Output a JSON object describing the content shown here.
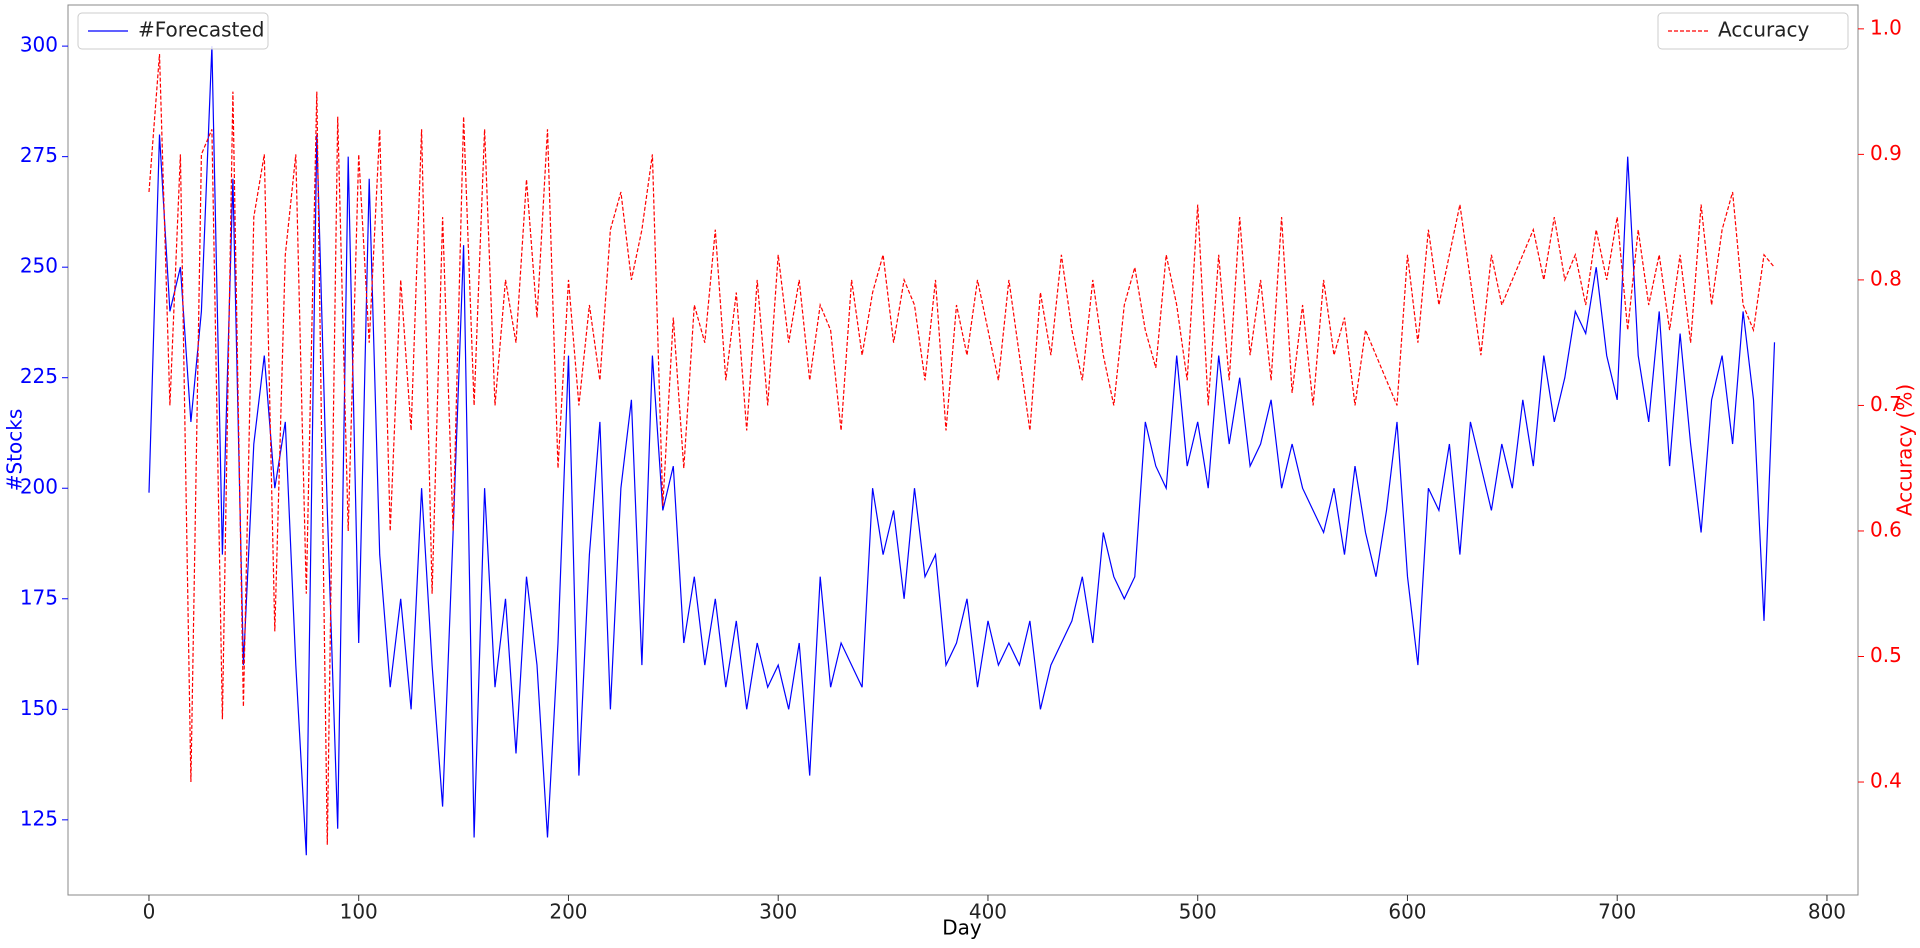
{
  "chart_data": {
    "type": "line",
    "xlabel": "Day",
    "ylabel": "#Stocks",
    "y2label": "Accuracy (%)",
    "x": [
      0,
      5,
      10,
      15,
      20,
      25,
      30,
      35,
      40,
      45,
      50,
      55,
      60,
      65,
      70,
      75,
      80,
      85,
      90,
      95,
      100,
      105,
      110,
      115,
      120,
      125,
      130,
      135,
      140,
      145,
      150,
      155,
      160,
      165,
      170,
      175,
      180,
      185,
      190,
      195,
      200,
      205,
      210,
      215,
      220,
      225,
      230,
      235,
      240,
      245,
      250,
      255,
      260,
      265,
      270,
      275,
      280,
      285,
      290,
      295,
      300,
      305,
      310,
      315,
      320,
      325,
      330,
      335,
      340,
      345,
      350,
      355,
      360,
      365,
      370,
      375,
      380,
      385,
      390,
      395,
      400,
      405,
      410,
      415,
      420,
      425,
      430,
      435,
      440,
      445,
      450,
      455,
      460,
      465,
      470,
      475,
      480,
      485,
      490,
      495,
      500,
      505,
      510,
      515,
      520,
      525,
      530,
      535,
      540,
      545,
      550,
      555,
      560,
      565,
      570,
      575,
      580,
      585,
      590,
      595,
      600,
      605,
      610,
      615,
      620,
      625,
      630,
      635,
      640,
      645,
      650,
      655,
      660,
      665,
      670,
      675,
      680,
      685,
      690,
      695,
      700,
      705,
      710,
      715,
      720,
      725,
      730,
      735,
      740,
      745,
      750,
      755,
      760,
      765,
      770,
      775
    ],
    "series": [
      {
        "name": "#Forecasted",
        "color": "#0000ff",
        "dash": "solid",
        "axis": "y",
        "values": [
          199,
          280,
          240,
          250,
          215,
          240,
          300,
          185,
          270,
          160,
          210,
          230,
          200,
          215,
          160,
          117,
          280,
          195,
          123,
          275,
          165,
          270,
          185,
          155,
          175,
          150,
          200,
          160,
          128,
          190,
          255,
          121,
          200,
          155,
          175,
          140,
          180,
          160,
          121,
          165,
          230,
          135,
          185,
          215,
          150,
          200,
          220,
          160,
          230,
          195,
          205,
          165,
          180,
          160,
          175,
          155,
          170,
          150,
          165,
          155,
          160,
          150,
          165,
          135,
          180,
          155,
          165,
          160,
          155,
          200,
          185,
          195,
          175,
          200,
          180,
          185,
          160,
          165,
          175,
          155,
          170,
          160,
          165,
          160,
          170,
          150,
          160,
          165,
          170,
          180,
          165,
          190,
          180,
          175,
          180,
          215,
          205,
          200,
          230,
          205,
          215,
          200,
          230,
          210,
          225,
          205,
          210,
          220,
          200,
          210,
          200,
          195,
          190,
          200,
          185,
          205,
          190,
          180,
          195,
          215,
          180,
          160,
          200,
          195,
          210,
          185,
          215,
          205,
          195,
          210,
          200,
          220,
          205,
          230,
          215,
          225,
          240,
          235,
          250,
          230,
          220,
          275,
          230,
          215,
          240,
          205,
          235,
          210,
          190,
          220,
          230,
          210,
          240,
          220,
          170,
          233
        ]
      },
      {
        "name": "Accuracy",
        "color": "#ff0000",
        "dash": "dashed",
        "axis": "y2",
        "values": [
          0.87,
          0.98,
          0.7,
          0.9,
          0.4,
          0.9,
          0.92,
          0.45,
          0.95,
          0.46,
          0.85,
          0.9,
          0.52,
          0.82,
          0.9,
          0.55,
          0.95,
          0.35,
          0.93,
          0.6,
          0.9,
          0.75,
          0.92,
          0.6,
          0.8,
          0.68,
          0.92,
          0.55,
          0.85,
          0.6,
          0.93,
          0.7,
          0.92,
          0.7,
          0.8,
          0.75,
          0.88,
          0.77,
          0.92,
          0.65,
          0.8,
          0.7,
          0.78,
          0.72,
          0.84,
          0.87,
          0.8,
          0.84,
          0.9,
          0.62,
          0.77,
          0.65,
          0.78,
          0.75,
          0.84,
          0.72,
          0.79,
          0.68,
          0.8,
          0.7,
          0.82,
          0.75,
          0.8,
          0.72,
          0.78,
          0.76,
          0.68,
          0.8,
          0.74,
          0.79,
          0.82,
          0.75,
          0.8,
          0.78,
          0.72,
          0.8,
          0.68,
          0.78,
          0.74,
          0.8,
          0.76,
          0.72,
          0.8,
          0.74,
          0.68,
          0.79,
          0.74,
          0.82,
          0.76,
          0.72,
          0.8,
          0.74,
          0.7,
          0.78,
          0.81,
          0.76,
          0.73,
          0.82,
          0.78,
          0.72,
          0.86,
          0.7,
          0.82,
          0.72,
          0.85,
          0.74,
          0.8,
          0.72,
          0.85,
          0.71,
          0.78,
          0.7,
          0.8,
          0.74,
          0.77,
          0.7,
          0.76,
          0.74,
          0.72,
          0.7,
          0.82,
          0.75,
          0.84,
          0.78,
          0.82,
          0.86,
          0.8,
          0.74,
          0.82,
          0.78,
          0.8,
          0.82,
          0.84,
          0.8,
          0.85,
          0.8,
          0.82,
          0.78,
          0.84,
          0.8,
          0.85,
          0.76,
          0.84,
          0.78,
          0.82,
          0.76,
          0.82,
          0.75,
          0.86,
          0.78,
          0.84,
          0.87,
          0.78,
          0.76,
          0.82,
          0.81
        ]
      }
    ],
    "xlim": [
      -38.6,
      814.8
    ],
    "xticks": [
      0,
      100,
      200,
      300,
      400,
      500,
      600,
      700,
      800
    ],
    "ylim": [
      108,
      309.3
    ],
    "yticks": [
      125,
      150,
      175,
      200,
      225,
      250,
      275,
      300
    ],
    "y2lim": [
      0.31,
      1.019
    ],
    "y2ticks": [
      0.4,
      0.5,
      0.6,
      0.7,
      0.8,
      0.9,
      {
        "value": 1,
        "label": "1.0"
      }
    ],
    "legend": {
      "y": "upper left",
      "y2": "upper right"
    }
  }
}
